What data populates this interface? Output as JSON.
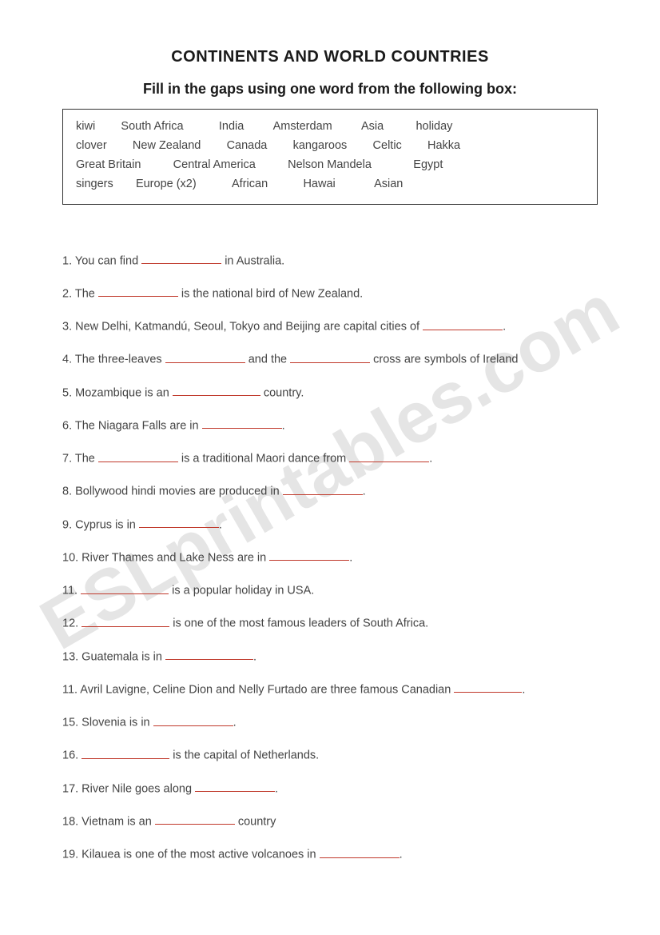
{
  "watermark": "ESLprintables.com",
  "title": "CONTINENTS AND  WORLD COUNTRIES",
  "subtitle": "Fill in the gaps using one word from the following box:",
  "wordbox": {
    "row1": "kiwi        South Africa           India         Amsterdam         Asia          holiday",
    "row2": "clover        New Zealand        Canada        kangaroos        Celtic        Hakka",
    "row3": "Great Britain          Central America          Nelson Mandela             Egypt",
    "row4": "singers       Europe (x2)           African           Hawai            Asian"
  },
  "questions": {
    "q1_pre": "1. You can find ",
    "q1_post": " in Australia.",
    "q2_pre": "2. The ",
    "q2_post": " is the national bird of New Zealand.",
    "q3_pre": "3. New Delhi, Katmandú, Seoul, Tokyo and  Beijing are capital cities of ",
    "q3_post": ".",
    "q4_pre": "4. The three-leaves ",
    "q4_mid": " and the ",
    "q4_post": " cross are symbols of Ireland",
    "q5_pre": "5. Mozambique is an ",
    "q5_post": " country.",
    "q6_pre": "6. The Niagara Falls are in ",
    "q6_post": ".",
    "q7_pre": "7. The ",
    "q7_mid": " is a traditional Maori dance from ",
    "q7_post": ".",
    "q8_pre": "8. Bollywood hindi movies are produced in ",
    "q8_post": ".",
    "q9_pre": "9. Cyprus is in ",
    "q9_post": ".",
    "q10_pre": "10. River Thames and Lake Ness are in ",
    "q10_post": ".",
    "q11_pre": "11. ",
    "q11_post": " is a popular holiday in USA.",
    "q12_pre": "12. ",
    "q12_post": " is one of the most famous leaders of South Africa.",
    "q13_pre": "13. Guatemala is in ",
    "q13_post": ".",
    "q14_pre": "11. Avril Lavigne,  Celine Dion and Nelly Furtado are three famous Canadian ",
    "q14_post": ".",
    "q15_pre": "15. Slovenia is in ",
    "q15_post": ".",
    "q16_pre": "16. ",
    "q16_post": " is the capital of  Netherlands.",
    "q17_pre": "17. River Nile goes along ",
    "q17_post": ".",
    "q18_pre": "18. Vietnam is an ",
    "q18_post": " country",
    "q19_pre": "19. Kilauea is one of the most active volcanoes in ",
    "q19_post": "."
  },
  "colors": {
    "blank_underline": "#c0392b",
    "text": "#444444",
    "title": "#1a1a1a",
    "background": "#ffffff",
    "watermark": "rgba(180,180,180,0.35)"
  }
}
